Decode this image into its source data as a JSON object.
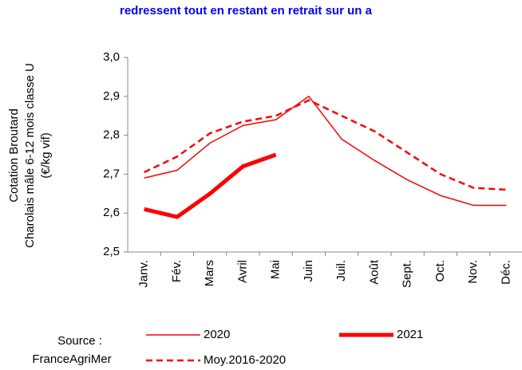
{
  "chart_data": {
    "type": "line",
    "title": "redressent tout en restant en retrait sur un a",
    "y_label": [
      "Cotation Broutard",
      "Charolais mâle 6-12 mois classe U",
      "(€/kg vif)"
    ],
    "source": [
      "Source :",
      "FranceAgriMer"
    ],
    "categories": [
      "Janv.",
      "Fév.",
      "Mars",
      "Avril",
      "Mai",
      "Juin",
      "Juil.",
      "Août",
      "Sept.",
      "Oct.",
      "Nov.",
      "Déc."
    ],
    "series": [
      {
        "name": "2020",
        "color": "#ff0000",
        "width": 1.5,
        "dashed": false,
        "values": [
          2.69,
          2.71,
          2.78,
          2.825,
          2.84,
          2.9,
          2.79,
          2.735,
          2.685,
          2.645,
          2.62,
          2.62
        ]
      },
      {
        "name": "2021",
        "color": "#ff0000",
        "width": 5,
        "dashed": false,
        "values": [
          2.61,
          2.59,
          2.65,
          2.72,
          2.75,
          null,
          null,
          null,
          null,
          null,
          null,
          null
        ]
      },
      {
        "name": "Moy.2016-2020",
        "color": "#ff0000",
        "width": 2.5,
        "dashed": true,
        "values": [
          2.705,
          2.745,
          2.805,
          2.835,
          2.85,
          2.89,
          2.85,
          2.81,
          2.755,
          2.7,
          2.665,
          2.66
        ]
      }
    ],
    "ylim": [
      2.5,
      3.0
    ],
    "yticks": [
      {
        "value": 2.5,
        "label": "2,5"
      },
      {
        "value": 2.6,
        "label": "2,6"
      },
      {
        "value": 2.7,
        "label": "2,7"
      },
      {
        "value": 2.8,
        "label": "2,8"
      },
      {
        "value": 2.9,
        "label": "2,9"
      },
      {
        "value": 3.0,
        "label": "3,0"
      }
    ],
    "grid": false
  }
}
